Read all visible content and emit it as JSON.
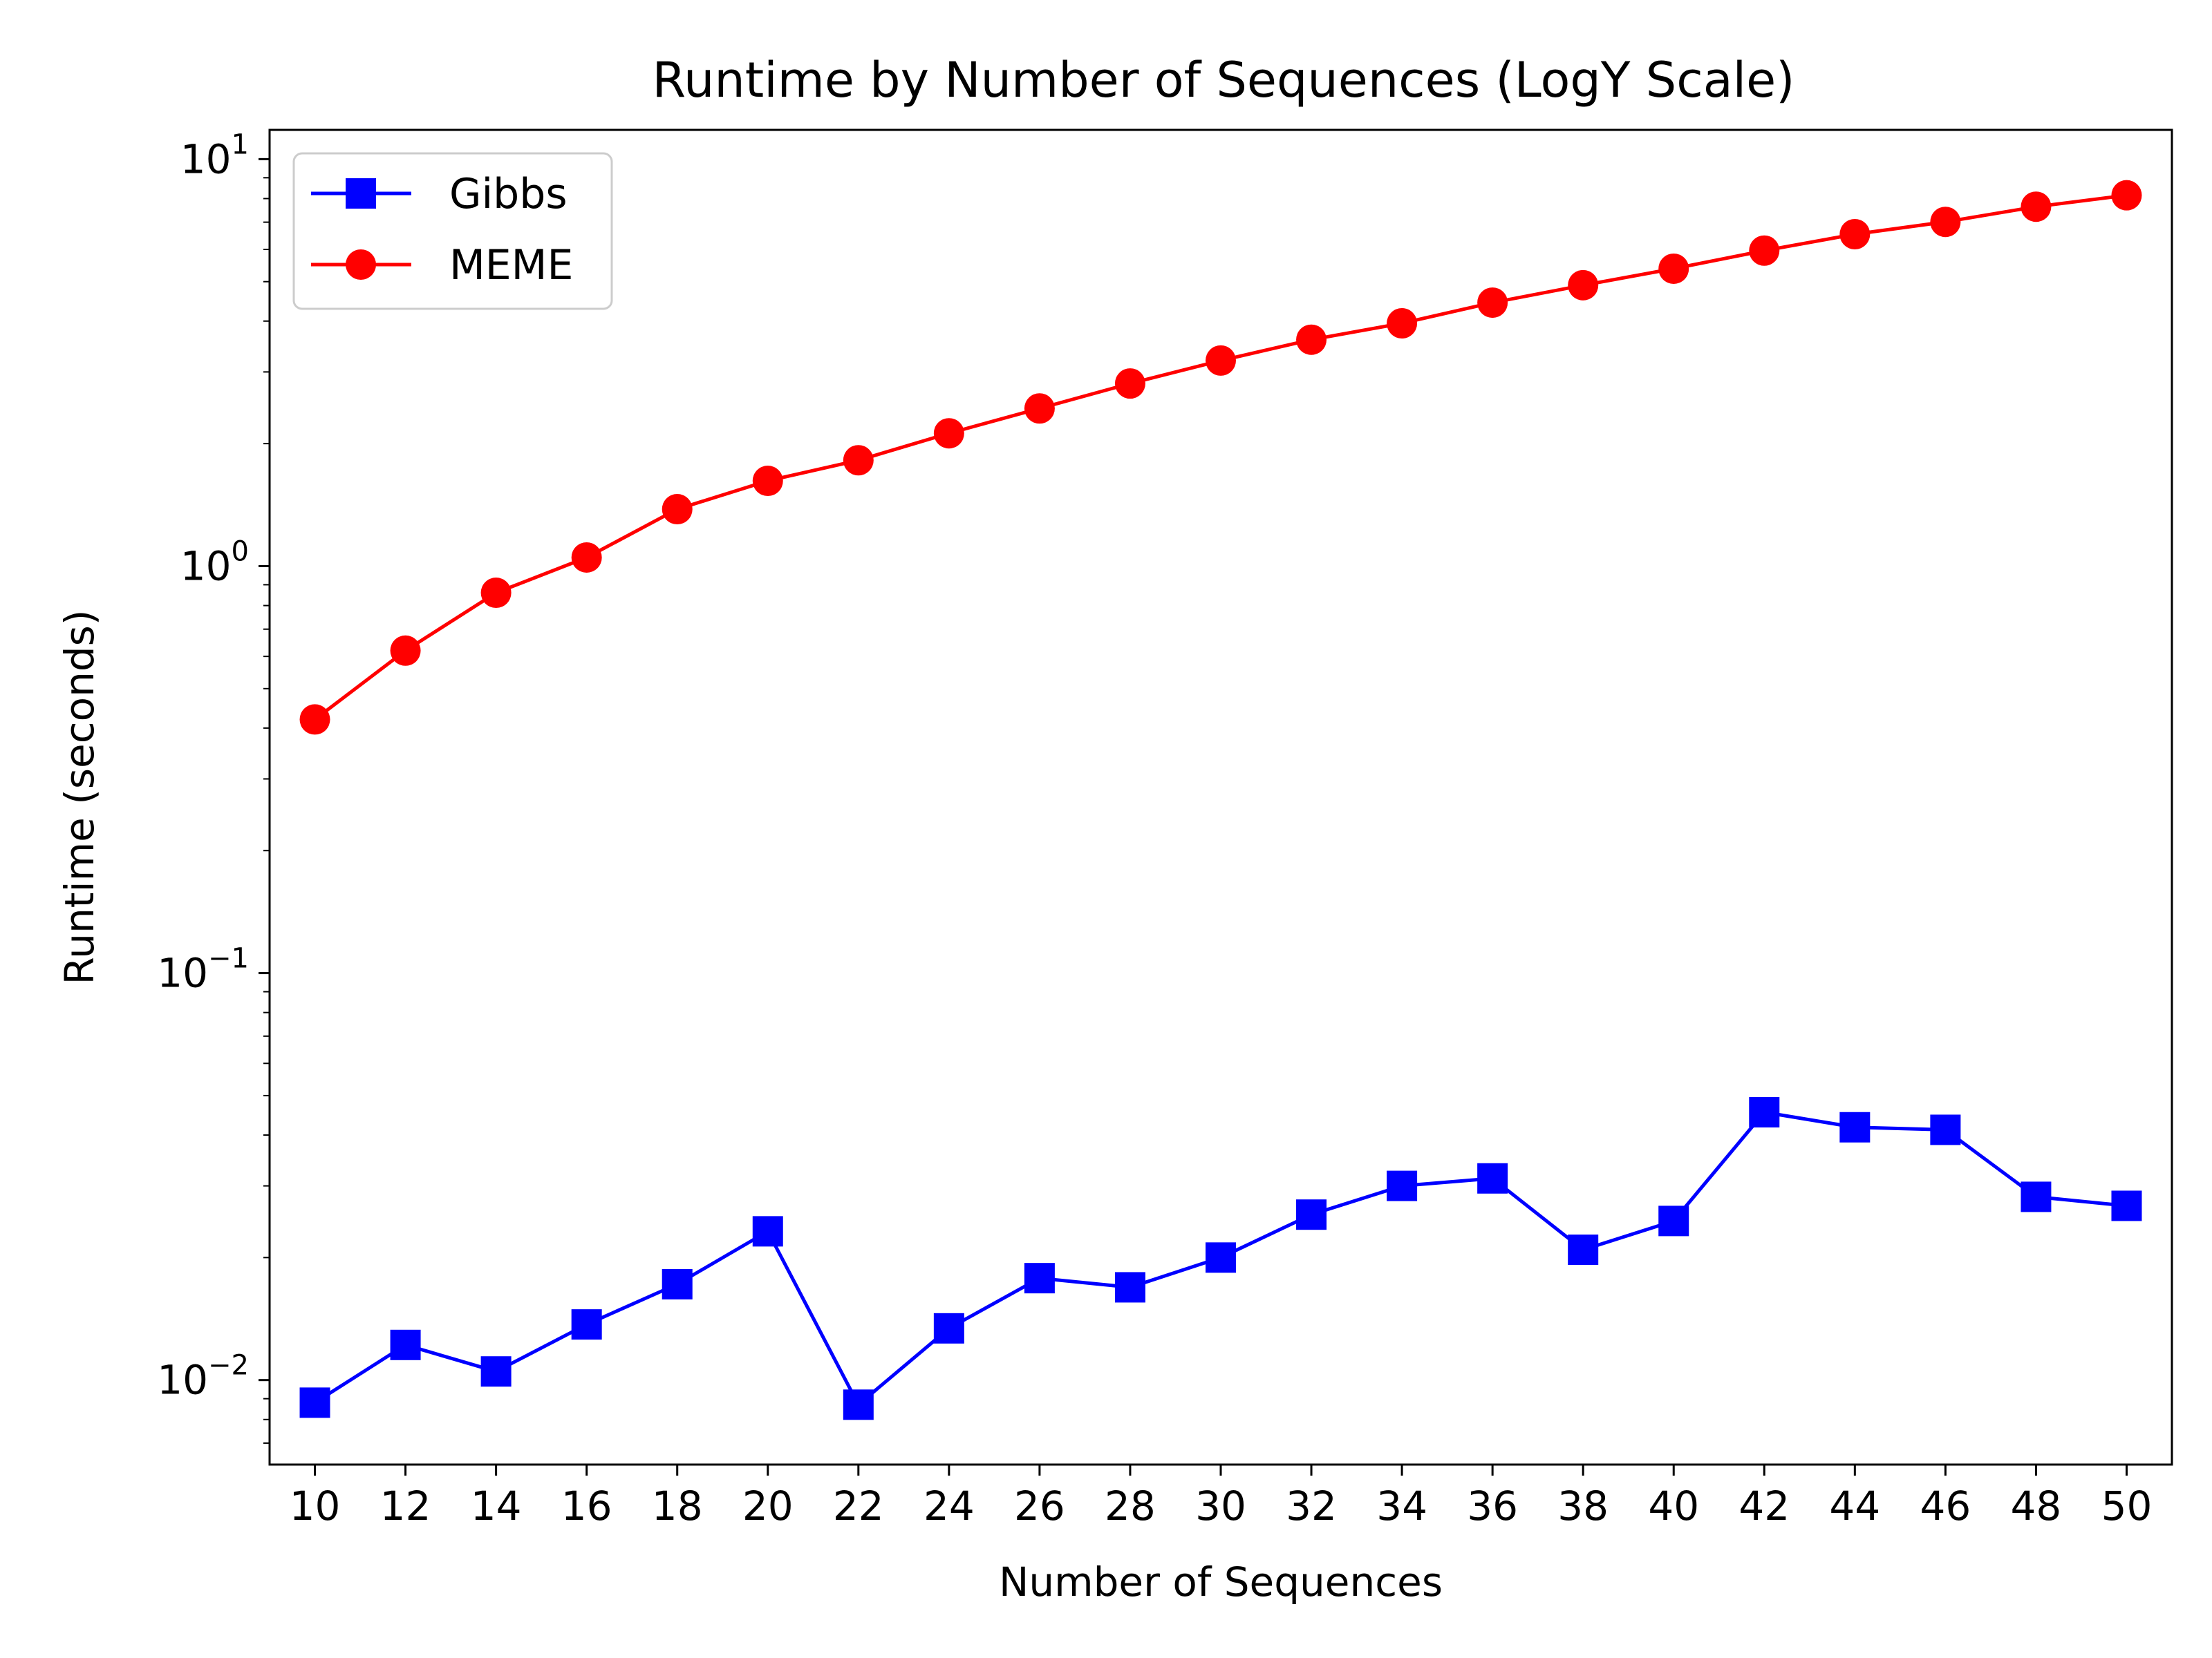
{
  "chart_data": {
    "type": "line",
    "title": "Runtime by Number of Sequences (LogY Scale)",
    "xlabel": "Number of Sequences",
    "ylabel": "Runtime (seconds)",
    "yscale": "log",
    "ylim": [
      0.0062,
      11.8
    ],
    "xlim": [
      9,
      51
    ],
    "grid": false,
    "legend_position": "top-left",
    "x": [
      10,
      12,
      14,
      16,
      18,
      20,
      22,
      24,
      26,
      28,
      30,
      32,
      34,
      36,
      38,
      40,
      42,
      44,
      46,
      48,
      50
    ],
    "x_tick_labels": [
      "10",
      "12",
      "14",
      "16",
      "18",
      "20",
      "22",
      "24",
      "26",
      "28",
      "30",
      "32",
      "34",
      "36",
      "38",
      "40",
      "42",
      "44",
      "46",
      "48",
      "50"
    ],
    "y_ticks": [
      {
        "value": 10,
        "base": "10",
        "exp": "1"
      },
      {
        "value": 1,
        "base": "10",
        "exp": "0"
      },
      {
        "value": 0.1,
        "base": "10",
        "exp": "−1"
      },
      {
        "value": 0.01,
        "base": "10",
        "exp": "−2"
      }
    ],
    "series": [
      {
        "name": "Gibbs",
        "color": "#0000ff",
        "marker": "square",
        "values": [
          0.0088,
          0.0122,
          0.0105,
          0.0137,
          0.0172,
          0.0232,
          0.0087,
          0.0134,
          0.0178,
          0.0169,
          0.02,
          0.0255,
          0.03,
          0.0313,
          0.0209,
          0.0246,
          0.0455,
          0.0418,
          0.0412,
          0.0282,
          0.0268
        ]
      },
      {
        "name": "MEME",
        "color": "#ff0000",
        "marker": "circle",
        "values": [
          0.42,
          0.62,
          0.86,
          1.05,
          1.38,
          1.62,
          1.82,
          2.12,
          2.44,
          2.81,
          3.2,
          3.6,
          3.95,
          4.44,
          4.9,
          5.38,
          5.96,
          6.54,
          7.01,
          7.64,
          8.15
        ]
      }
    ]
  }
}
